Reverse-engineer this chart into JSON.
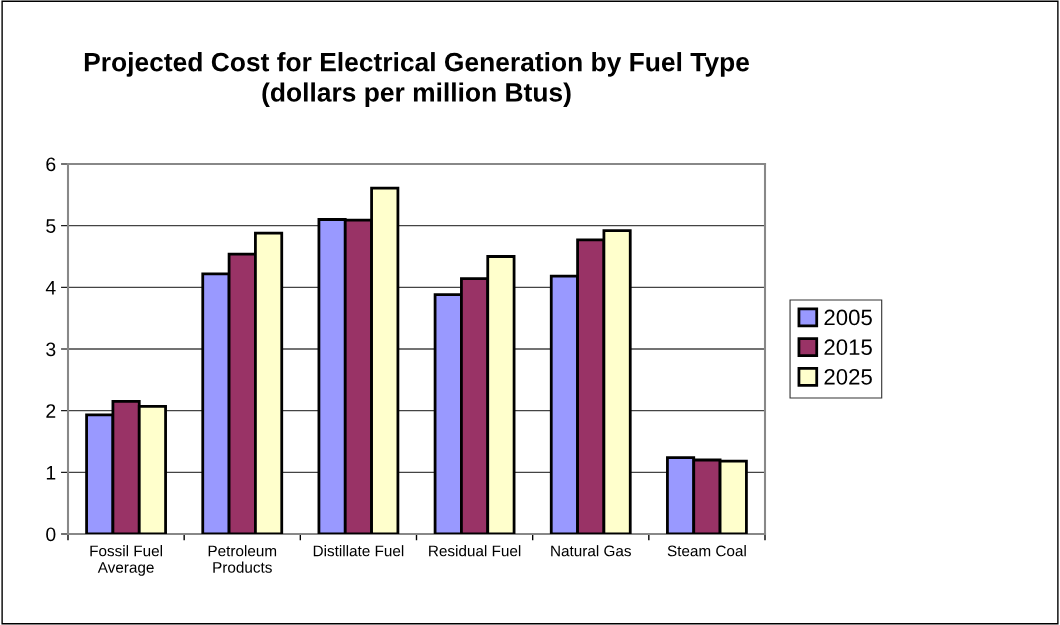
{
  "chart_data": {
    "type": "bar",
    "title": "Projected Cost for Electrical Generation by Fuel Type\n(dollars per million Btus)",
    "categories": [
      "Fossil Fuel\nAverage",
      "Petroleum\nProducts",
      "Distillate Fuel",
      "Residual Fuel",
      "Natural Gas",
      "Steam Coal"
    ],
    "series": [
      {
        "name": "2005",
        "color": "#9999ff",
        "values": [
          1.93,
          4.22,
          5.1,
          3.88,
          4.18,
          1.24
        ]
      },
      {
        "name": "2015",
        "color": "#993366",
        "values": [
          2.15,
          4.54,
          5.09,
          4.14,
          4.77,
          1.2
        ]
      },
      {
        "name": "2025",
        "color": "#ffffcc",
        "values": [
          2.07,
          4.88,
          5.61,
          4.5,
          4.92,
          1.18
        ]
      }
    ],
    "ylim": [
      0,
      6
    ],
    "yticks": [
      0,
      1,
      2,
      3,
      4,
      5,
      6
    ],
    "grid": "y",
    "legend": "right"
  }
}
